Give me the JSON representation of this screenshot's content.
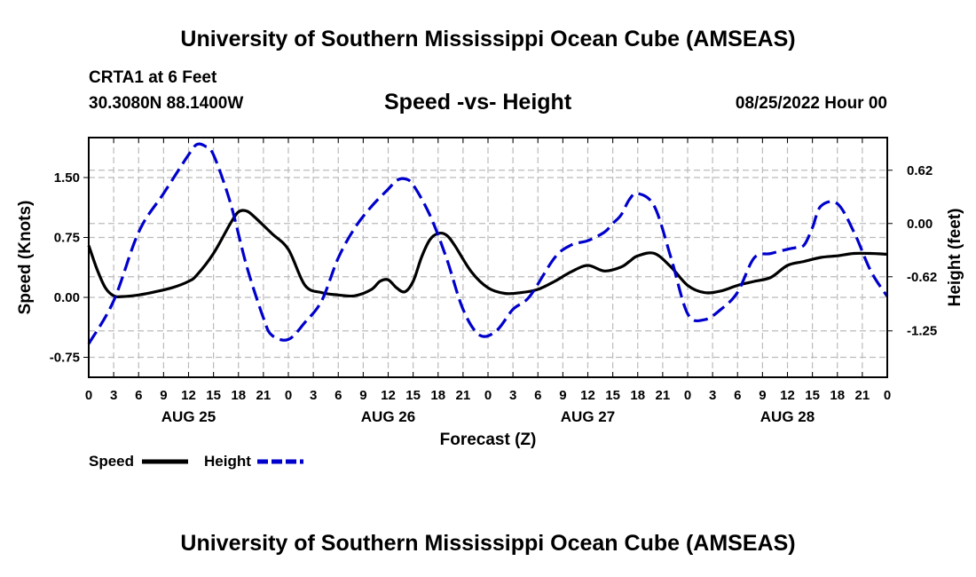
{
  "header": {
    "title": "University of Southern Mississippi Ocean Cube (AMSEAS)",
    "station": "CRTA1 at 6 Feet",
    "coords": "30.3080N  88.1400W",
    "subtitle": "Speed -vs- Height",
    "date": "08/25/2022 Hour 00"
  },
  "footer": {
    "title": "University of Southern Mississippi Ocean Cube (AMSEAS)"
  },
  "colors": {
    "speed": "#000000",
    "height": "#0000cc",
    "grid": "#bbbbbb",
    "axis": "#000000"
  },
  "chart_data": {
    "type": "line",
    "title": "Speed -vs- Height",
    "xlabel": "Forecast (Z)",
    "ylabel_left": "Speed (Knots)",
    "ylabel_right": "Height (feet)",
    "x_range_hours": [
      0,
      96
    ],
    "ylim_left": [
      -1.0,
      2.0
    ],
    "ylim_right": [
      -1.79,
      1.0
    ],
    "x_tick_hours": [
      0,
      3,
      6,
      9,
      12,
      15,
      18,
      21,
      24,
      27,
      30,
      33,
      36,
      39,
      42,
      45,
      48,
      51,
      54,
      57,
      60,
      63,
      66,
      69,
      72,
      75,
      78,
      81,
      84,
      87,
      90,
      93,
      96
    ],
    "x_tick_labels": [
      "0",
      "3",
      "6",
      "9",
      "12",
      "15",
      "18",
      "21",
      "0",
      "3",
      "6",
      "9",
      "12",
      "15",
      "18",
      "21",
      "0",
      "3",
      "6",
      "9",
      "12",
      "15",
      "18",
      "21",
      "0",
      "3",
      "6",
      "9",
      "12",
      "15",
      "18",
      "21",
      "0"
    ],
    "day_labels": [
      {
        "hour": 12,
        "label": "AUG 25"
      },
      {
        "hour": 36,
        "label": "AUG 26"
      },
      {
        "hour": 60,
        "label": "AUG 27"
      },
      {
        "hour": 84,
        "label": "AUG 28"
      }
    ],
    "y_ticks_left": [
      {
        "value": -0.75,
        "label": "-0.75"
      },
      {
        "value": 0,
        "label": "0.00"
      },
      {
        "value": 0.75,
        "label": "0.75"
      },
      {
        "value": 1.5,
        "label": "1.50"
      }
    ],
    "y_ticks_right": [
      {
        "value": -1.25,
        "label": "-1.25"
      },
      {
        "value": -0.62,
        "label": "-0.62"
      },
      {
        "value": 0.0,
        "label": "0.00"
      },
      {
        "value": 0.62,
        "label": "0.62"
      }
    ],
    "series": [
      {
        "name": "Speed",
        "axis": "left",
        "style": "solid",
        "x": [
          0,
          1,
          2,
          3,
          4,
          6,
          8,
          10,
          12,
          13,
          15,
          17,
          18,
          19,
          20,
          22,
          24,
          26,
          28,
          30,
          32,
          34,
          35,
          36,
          37,
          38,
          39,
          40,
          41,
          42,
          43,
          44,
          46,
          48,
          50,
          52,
          54,
          56,
          58,
          60,
          62,
          64,
          65,
          66,
          68,
          70,
          72,
          74,
          76,
          78,
          80,
          82,
          84,
          86,
          88,
          90,
          92,
          94,
          96
        ],
        "values": [
          0.65,
          0.35,
          0.12,
          0.02,
          0.01,
          0.03,
          0.07,
          0.12,
          0.2,
          0.28,
          0.55,
          0.92,
          1.07,
          1.08,
          1.0,
          0.8,
          0.6,
          0.15,
          0.06,
          0.03,
          0.02,
          0.1,
          0.2,
          0.22,
          0.12,
          0.07,
          0.2,
          0.5,
          0.72,
          0.8,
          0.78,
          0.65,
          0.32,
          0.12,
          0.05,
          0.06,
          0.1,
          0.2,
          0.32,
          0.4,
          0.33,
          0.38,
          0.45,
          0.52,
          0.55,
          0.38,
          0.15,
          0.06,
          0.08,
          0.15,
          0.2,
          0.25,
          0.4,
          0.45,
          0.5,
          0.52,
          0.55,
          0.55,
          0.54
        ]
      },
      {
        "name": "Height",
        "axis": "right",
        "style": "dashed",
        "x": [
          0,
          3,
          6,
          9,
          12,
          13,
          14,
          15,
          17,
          19,
          21,
          22,
          24,
          26,
          28,
          30,
          32,
          34,
          36,
          37,
          38,
          39,
          41,
          43,
          45,
          47,
          49,
          51,
          53,
          56,
          58,
          60,
          62,
          63,
          64,
          65,
          66,
          68,
          70,
          72,
          74,
          76,
          78,
          80,
          82,
          84,
          85,
          86,
          87,
          88,
          90,
          92,
          94,
          96
        ],
        "values": [
          -1.4,
          -0.9,
          -0.1,
          0.35,
          0.8,
          0.92,
          0.9,
          0.8,
          0.25,
          -0.5,
          -1.1,
          -1.3,
          -1.35,
          -1.15,
          -0.9,
          -0.4,
          -0.05,
          0.2,
          0.4,
          0.5,
          0.52,
          0.45,
          0.1,
          -0.4,
          -1.0,
          -1.3,
          -1.25,
          -1.0,
          -0.85,
          -0.4,
          -0.25,
          -0.2,
          -0.1,
          0.0,
          0.1,
          0.28,
          0.35,
          0.2,
          -0.4,
          -1.05,
          -1.12,
          -1.0,
          -0.8,
          -0.4,
          -0.35,
          -0.3,
          -0.28,
          -0.25,
          -0.05,
          0.2,
          0.23,
          -0.1,
          -0.55,
          -0.85
        ]
      }
    ],
    "legend": [
      {
        "name": "Speed",
        "style": "solid"
      },
      {
        "name": "Height",
        "style": "dashed"
      }
    ]
  }
}
